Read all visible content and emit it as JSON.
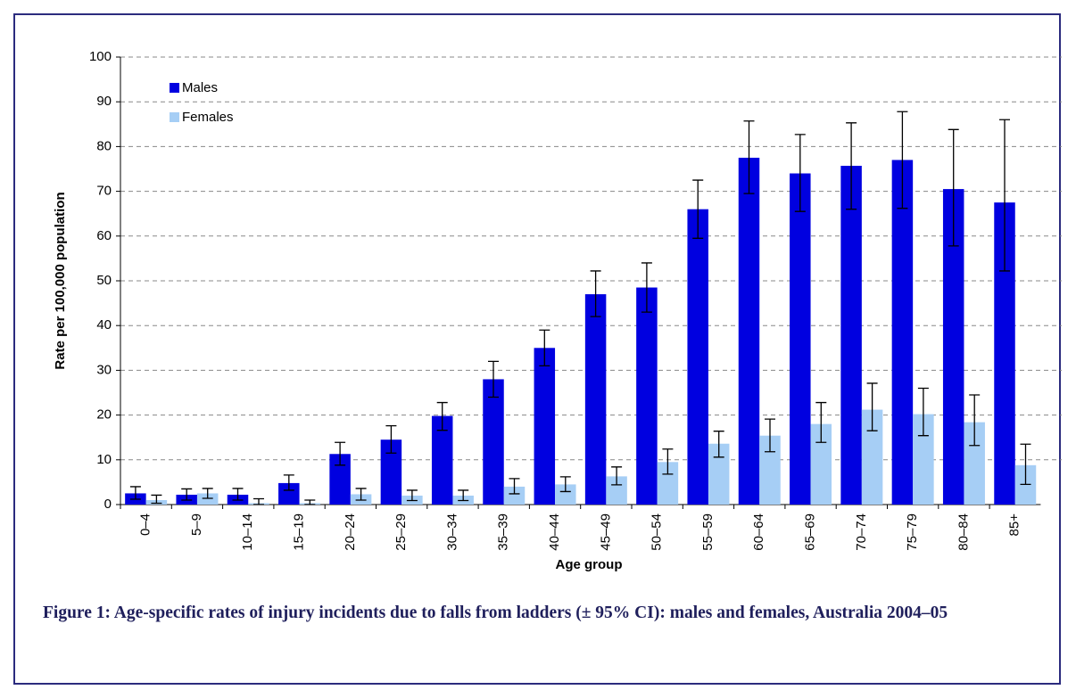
{
  "chart_data": {
    "type": "bar",
    "caption": "Figure 1: Age-specific rates of injury incidents due to falls from ladders (± 95% CI): males and females, Australia 2004–05",
    "xlabel": "Age group",
    "ylabel": "Rate per 100,000 population",
    "categories": [
      "0–4",
      "5–9",
      "10–14",
      "15–19",
      "20–24",
      "25–29",
      "30–34",
      "35–39",
      "40–44",
      "45–49",
      "50–54",
      "55–59",
      "60–64",
      "65–69",
      "70–74",
      "75–79",
      "80–84",
      "85+"
    ],
    "series": [
      {
        "name": "Males",
        "color": "#0000e0",
        "values": [
          2.5,
          2.2,
          2.2,
          4.8,
          11.3,
          14.5,
          19.8,
          28.0,
          35.0,
          47.0,
          48.5,
          66.0,
          77.5,
          74.0,
          75.7,
          77.0,
          70.5,
          67.5
        ],
        "ci_low": [
          1.2,
          1.0,
          1.0,
          3.2,
          8.8,
          11.5,
          16.6,
          24.0,
          31.0,
          42.0,
          43.0,
          59.5,
          69.5,
          65.5,
          66.0,
          66.2,
          57.8,
          52.2
        ],
        "ci_high": [
          4.0,
          3.5,
          3.6,
          6.6,
          13.9,
          17.6,
          22.8,
          32.0,
          39.0,
          52.2,
          54.0,
          72.5,
          85.7,
          82.7,
          85.3,
          87.8,
          83.8,
          86.0
        ]
      },
      {
        "name": "Females",
        "color": "#a6cef5",
        "values": [
          1.0,
          2.5,
          0.3,
          0.3,
          2.3,
          2.0,
          2.0,
          4.0,
          4.5,
          6.3,
          9.5,
          13.6,
          15.4,
          18.0,
          21.2,
          20.2,
          18.4,
          8.8
        ],
        "ci_low": [
          0.3,
          1.4,
          0.0,
          0.0,
          1.0,
          0.9,
          0.9,
          2.4,
          2.9,
          4.4,
          6.8,
          10.6,
          11.8,
          13.9,
          16.5,
          15.4,
          13.2,
          4.5
        ],
        "ci_high": [
          2.1,
          3.6,
          1.3,
          1.0,
          3.6,
          3.2,
          3.2,
          5.8,
          6.2,
          8.4,
          12.4,
          16.4,
          19.1,
          22.8,
          27.1,
          26.0,
          24.5,
          13.5
        ]
      }
    ],
    "ylim": [
      0,
      100
    ],
    "yticks": [
      0,
      10,
      20,
      30,
      40,
      50,
      60,
      70,
      80,
      90,
      100
    ],
    "grid": true,
    "legend": "upper left"
  }
}
